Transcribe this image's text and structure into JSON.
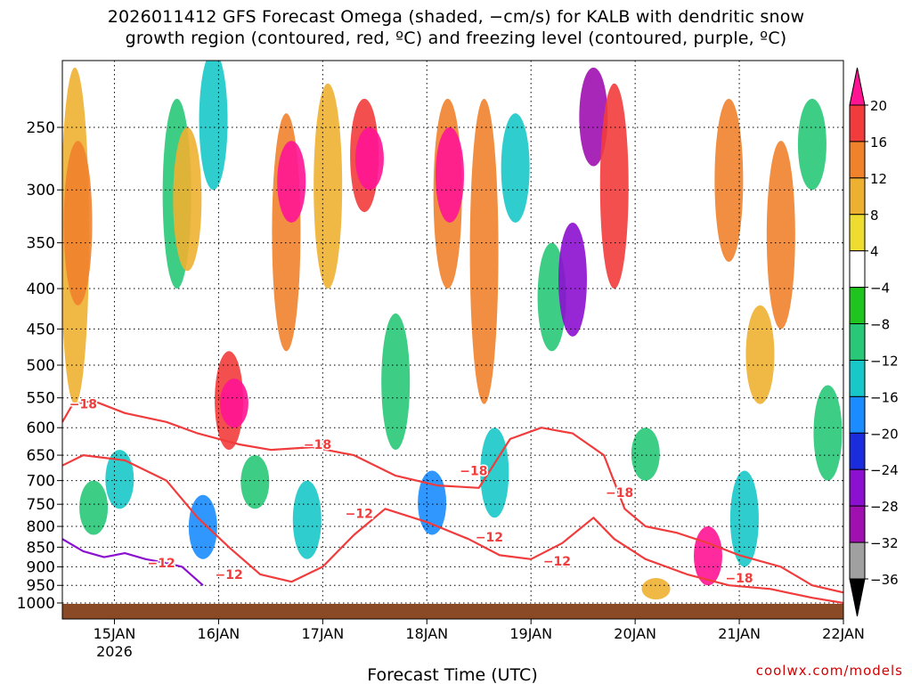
{
  "chart_data": {
    "type": "heatmap",
    "title": "2026011412 GFS Forecast Omega (shaded, −cm/s) for KALB with dendritic snow",
    "subtitle": "growth region (contoured, red, ºC) and freezing level (contoured, purple, ºC)",
    "xlabel": "Forecast Time (UTC)",
    "ylabel": "",
    "x_ticks": [
      {
        "day": 0.5,
        "label": "15JAN",
        "sublabel": "2026"
      },
      {
        "day": 1.5,
        "label": "16JAN"
      },
      {
        "day": 2.5,
        "label": "17JAN"
      },
      {
        "day": 3.5,
        "label": "18JAN"
      },
      {
        "day": 4.5,
        "label": "19JAN"
      },
      {
        "day": 5.5,
        "label": "20JAN"
      },
      {
        "day": 6.5,
        "label": "21JAN"
      },
      {
        "day": 7.5,
        "label": "22JAN"
      }
    ],
    "xlim": [
      0,
      7.5
    ],
    "y_ticks": [
      250,
      300,
      350,
      400,
      450,
      500,
      550,
      600,
      650,
      700,
      750,
      800,
      850,
      900,
      950,
      1000
    ],
    "ylim": [
      200,
      1025
    ],
    "colorbar": {
      "labels": [
        "20",
        "16",
        "12",
        "8",
        "4",
        "−4",
        "−8",
        "−12",
        "−16",
        "−20",
        "−24",
        "−28",
        "−32",
        "−36"
      ],
      "colors": [
        "#ff1493",
        "#f23c3c",
        "#f0822c",
        "#eeb030",
        "#eedd30",
        "#ffffff",
        "#1fc41f",
        "#28c878",
        "#18c8c8",
        "#1a8cff",
        "#1a2cdc",
        "#8c10d0",
        "#a010b0",
        "#a0a0a0",
        "#000000"
      ]
    },
    "omega_cells": [
      {
        "day": 0.12,
        "p1": 210,
        "p2": 560,
        "v": 8
      },
      {
        "day": 0.15,
        "p1": 260,
        "p2": 420,
        "v": 12
      },
      {
        "day": 0.3,
        "p1": 700,
        "p2": 820,
        "v": -8
      },
      {
        "day": 0.55,
        "p1": 640,
        "p2": 760,
        "v": -12
      },
      {
        "day": 1.1,
        "p1": 230,
        "p2": 400,
        "v": -8
      },
      {
        "day": 1.2,
        "p1": 250,
        "p2": 380,
        "v": 8
      },
      {
        "day": 1.35,
        "p1": 730,
        "p2": 880,
        "v": -16
      },
      {
        "day": 1.45,
        "p1": 200,
        "p2": 300,
        "v": -12
      },
      {
        "day": 1.6,
        "p1": 480,
        "p2": 640,
        "v": 16
      },
      {
        "day": 1.65,
        "p1": 520,
        "p2": 600,
        "v": 20
      },
      {
        "day": 1.85,
        "p1": 650,
        "p2": 760,
        "v": -8
      },
      {
        "day": 2.15,
        "p1": 240,
        "p2": 480,
        "v": 12
      },
      {
        "day": 2.2,
        "p1": 260,
        "p2": 330,
        "v": 20
      },
      {
        "day": 2.35,
        "p1": 700,
        "p2": 880,
        "v": -12
      },
      {
        "day": 2.55,
        "p1": 220,
        "p2": 400,
        "v": 8
      },
      {
        "day": 2.9,
        "p1": 230,
        "p2": 320,
        "v": 16
      },
      {
        "day": 2.95,
        "p1": 250,
        "p2": 300,
        "v": 20
      },
      {
        "day": 3.2,
        "p1": 430,
        "p2": 640,
        "v": -8
      },
      {
        "day": 3.55,
        "p1": 680,
        "p2": 820,
        "v": -16
      },
      {
        "day": 3.7,
        "p1": 230,
        "p2": 400,
        "v": 12
      },
      {
        "day": 3.72,
        "p1": 250,
        "p2": 330,
        "v": 20
      },
      {
        "day": 4.05,
        "p1": 230,
        "p2": 560,
        "v": 12
      },
      {
        "day": 4.15,
        "p1": 600,
        "p2": 780,
        "v": -12
      },
      {
        "day": 4.35,
        "p1": 240,
        "p2": 330,
        "v": -12
      },
      {
        "day": 4.7,
        "p1": 350,
        "p2": 480,
        "v": -8
      },
      {
        "day": 4.9,
        "p1": 330,
        "p2": 460,
        "v": -24
      },
      {
        "day": 5.1,
        "p1": 210,
        "p2": 280,
        "v": -28
      },
      {
        "day": 5.3,
        "p1": 220,
        "p2": 400,
        "v": 16
      },
      {
        "day": 5.6,
        "p1": 600,
        "p2": 700,
        "v": -8
      },
      {
        "day": 5.7,
        "p1": 930,
        "p2": 990,
        "v": 8
      },
      {
        "day": 6.2,
        "p1": 800,
        "p2": 950,
        "v": 20
      },
      {
        "day": 6.4,
        "p1": 230,
        "p2": 370,
        "v": 12
      },
      {
        "day": 6.55,
        "p1": 680,
        "p2": 900,
        "v": -12
      },
      {
        "day": 6.7,
        "p1": 420,
        "p2": 560,
        "v": 8
      },
      {
        "day": 6.9,
        "p1": 260,
        "p2": 450,
        "v": 12
      },
      {
        "day": 7.2,
        "p1": 230,
        "p2": 300,
        "v": -8
      },
      {
        "day": 7.35,
        "p1": 530,
        "p2": 700,
        "v": -8
      }
    ],
    "contours": [
      {
        "label": "−18",
        "color": "#f03c3c",
        "points": [
          [
            0.0,
            590
          ],
          [
            0.1,
            560
          ],
          [
            0.3,
            555
          ],
          [
            0.6,
            575
          ],
          [
            1.0,
            590
          ],
          [
            1.3,
            610
          ],
          [
            1.7,
            630
          ],
          [
            2.0,
            640
          ],
          [
            2.4,
            635
          ],
          [
            2.8,
            650
          ],
          [
            3.2,
            690
          ],
          [
            3.6,
            710
          ],
          [
            4.0,
            715
          ],
          [
            4.3,
            620
          ],
          [
            4.6,
            600
          ],
          [
            4.9,
            610
          ],
          [
            5.2,
            650
          ],
          [
            5.4,
            760
          ],
          [
            5.6,
            800
          ],
          [
            5.9,
            815
          ],
          [
            6.2,
            840
          ],
          [
            6.5,
            870
          ],
          [
            6.9,
            900
          ],
          [
            7.2,
            950
          ],
          [
            7.5,
            970
          ]
        ]
      },
      {
        "label": "−12",
        "color": "#f03c3c",
        "points": [
          [
            0.0,
            670
          ],
          [
            0.2,
            650
          ],
          [
            0.6,
            660
          ],
          [
            1.0,
            700
          ],
          [
            1.3,
            780
          ],
          [
            1.6,
            850
          ],
          [
            1.9,
            920
          ],
          [
            2.2,
            940
          ],
          [
            2.5,
            900
          ],
          [
            2.8,
            820
          ],
          [
            3.1,
            760
          ],
          [
            3.5,
            790
          ],
          [
            3.9,
            830
          ],
          [
            4.2,
            870
          ],
          [
            4.5,
            880
          ],
          [
            4.8,
            840
          ],
          [
            5.1,
            780
          ],
          [
            5.3,
            830
          ],
          [
            5.6,
            880
          ],
          [
            6.0,
            920
          ],
          [
            6.4,
            950
          ],
          [
            6.8,
            960
          ],
          [
            7.2,
            985
          ],
          [
            7.5,
            1000
          ]
        ]
      },
      {
        "label": "0",
        "color": "#8c10d0",
        "points": [
          [
            0.0,
            830
          ],
          [
            0.2,
            860
          ],
          [
            0.4,
            875
          ],
          [
            0.6,
            865
          ],
          [
            0.8,
            880
          ],
          [
            1.0,
            890
          ],
          [
            1.15,
            900
          ],
          [
            1.35,
            950
          ]
        ]
      }
    ],
    "contour_labels": [
      {
        "text": "−18",
        "day": 0.2,
        "p": 560
      },
      {
        "text": "−12",
        "day": 0.95,
        "p": 890
      },
      {
        "text": "−12",
        "day": 1.6,
        "p": 920
      },
      {
        "text": "−18",
        "day": 2.45,
        "p": 630
      },
      {
        "text": "−12",
        "day": 2.85,
        "p": 770
      },
      {
        "text": "−18",
        "day": 3.95,
        "p": 680
      },
      {
        "text": "−12",
        "day": 4.1,
        "p": 825
      },
      {
        "text": "−12",
        "day": 4.75,
        "p": 885
      },
      {
        "text": "−18",
        "day": 5.35,
        "p": 725
      },
      {
        "text": "−18",
        "day": 6.5,
        "p": 930
      }
    ]
  },
  "credit": "coolwx.com/models"
}
